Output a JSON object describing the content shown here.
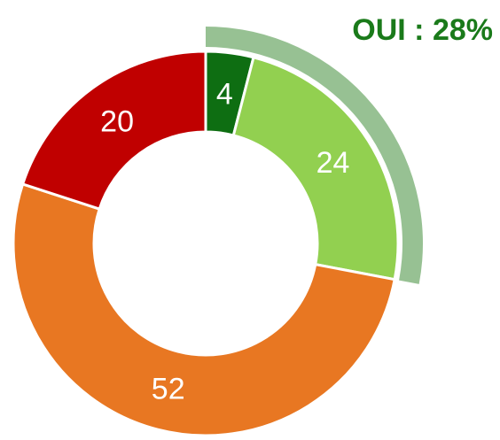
{
  "chart_data": {
    "type": "donut",
    "annotation": "OUI : 28%",
    "categories": [
      null,
      null,
      null,
      null
    ],
    "values": [
      4,
      24,
      52,
      20
    ],
    "colors": [
      "#0e6e12",
      "#92d050",
      "#e87722",
      "#c00000"
    ],
    "highlight_color": "#97c193"
  }
}
